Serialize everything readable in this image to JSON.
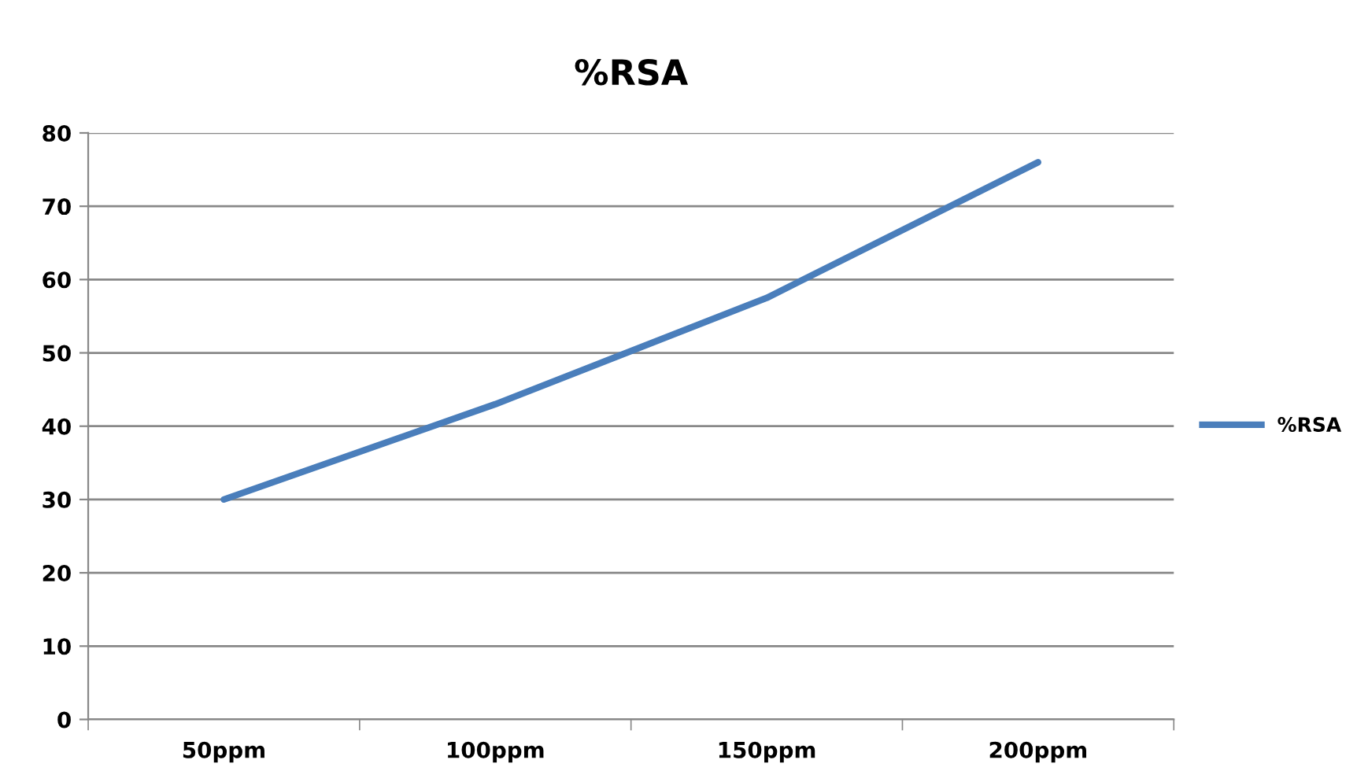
{
  "chart_data": {
    "type": "line",
    "title": "%RSA",
    "categories": [
      "50ppm",
      "100ppm",
      "150ppm",
      "200ppm"
    ],
    "series": [
      {
        "name": "%RSA",
        "color": "#4a7ebb",
        "values": [
          30,
          43,
          57.5,
          76
        ]
      }
    ],
    "ylim": [
      0,
      80
    ],
    "yticks": [
      0,
      10,
      20,
      30,
      40,
      50,
      60,
      70,
      80
    ],
    "grid": "y",
    "legend": "right",
    "marker": "none",
    "line_style": "solid"
  }
}
